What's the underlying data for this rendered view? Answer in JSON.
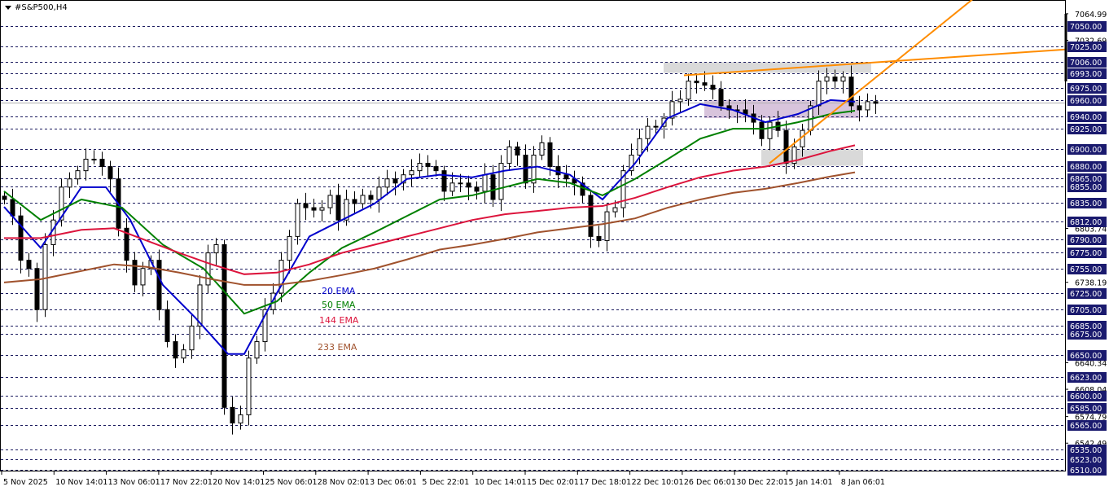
{
  "header": {
    "symbol_label": "#S&P500,H4",
    "menu_icon": "triangle-down-icon"
  },
  "colors": {
    "background": "#ffffff",
    "grid_dash": "#1a1a5e",
    "label_box": "#1a1a6e",
    "ema20": "#0000cc",
    "ema50": "#008000",
    "ema144": "#dc143c",
    "ema233": "#a0522d",
    "trendline": "#ff8c00",
    "zone_gray": "#d9d9d9",
    "zone_purple": "#d8c4dc"
  },
  "chart_data": {
    "type": "candlestick",
    "title": "#S&P500,H4",
    "x_tick_labels": [
      "5 Nov 2025",
      "10 Nov 14:01",
      "13 Nov 06:01",
      "17 Nov 22:01",
      "20 Nov 14:01",
      "25 Nov 06:01",
      "28 Nov 02:01",
      "3 Dec 06:01",
      "5 Dec 22:01",
      "10 Dec 14:01",
      "15 Dec 02:01",
      "17 Dec 18:01",
      "22 Dec 10:01",
      "26 Dec 06:01",
      "30 Dec 22:01",
      "5 Jan 14:01",
      "8 Jan 06:01"
    ],
    "ylim": [
      6505,
      7080
    ],
    "closes": [
      6839,
      6819,
      6765,
      6755,
      6705,
      6784,
      6814,
      6854,
      6864,
      6874,
      6888,
      6888,
      6879,
      6864,
      6804,
      6765,
      6735,
      6755,
      6765,
      6705,
      6666,
      6646,
      6656,
      6685,
      6735,
      6774,
      6784,
      6586,
      6567,
      6577,
      6646,
      6666,
      6705,
      6725,
      6765,
      6794,
      6834,
      6829,
      6826,
      6829,
      6844,
      6814,
      6839,
      6834,
      6844,
      6839,
      6854,
      6864,
      6859,
      6869,
      6874,
      6883,
      6879,
      6874,
      6849,
      6859,
      6859,
      6854,
      6849,
      6869,
      6839,
      6883,
      6903,
      6893,
      6859,
      6893,
      6908,
      6879,
      6869,
      6864,
      6859,
      6844,
      6794,
      6789,
      6824,
      6829,
      6874,
      6893,
      6913,
      6928,
      6928,
      6938,
      6958,
      6961,
      6983,
      6981,
      6978,
      6973,
      6953,
      6948,
      6948,
      6943,
      6933,
      6913,
      6933,
      6923,
      6883,
      6903,
      6923,
      6953,
      6983,
      6988,
      6983,
      6988,
      6953,
      6948,
      6958,
      6956
    ],
    "series": [
      {
        "name": "20 EMA",
        "points": [
          [
            0,
            6830
          ],
          [
            4.5,
            6780
          ],
          [
            9.5,
            6854
          ],
          [
            12.5,
            6854
          ],
          [
            15.5,
            6814
          ],
          [
            19.5,
            6735
          ],
          [
            23.5,
            6695
          ],
          [
            27.5,
            6651
          ],
          [
            29.5,
            6651
          ],
          [
            33.5,
            6725
          ],
          [
            37.5,
            6794
          ],
          [
            41.5,
            6814
          ],
          [
            45.5,
            6834
          ],
          [
            49.5,
            6864
          ],
          [
            53.5,
            6869
          ],
          [
            57.5,
            6866
          ],
          [
            61.5,
            6874
          ],
          [
            65.5,
            6879
          ],
          [
            69.5,
            6869
          ],
          [
            73.5,
            6839
          ],
          [
            77.5,
            6883
          ],
          [
            81.5,
            6938
          ],
          [
            85.5,
            6955
          ],
          [
            89.5,
            6948
          ],
          [
            93.5,
            6933
          ],
          [
            97.5,
            6943
          ],
          [
            101.5,
            6960
          ],
          [
            104.5,
            6958
          ]
        ]
      },
      {
        "name": "50 EMA",
        "points": [
          [
            0,
            6849
          ],
          [
            4.5,
            6814
          ],
          [
            9.5,
            6839
          ],
          [
            14.5,
            6829
          ],
          [
            19.5,
            6784
          ],
          [
            24.5,
            6755
          ],
          [
            29.5,
            6700
          ],
          [
            33.5,
            6715
          ],
          [
            37.5,
            6750
          ],
          [
            41.5,
            6780
          ],
          [
            45.5,
            6799
          ],
          [
            49.5,
            6819
          ],
          [
            53.5,
            6839
          ],
          [
            57.5,
            6844
          ],
          [
            61.5,
            6854
          ],
          [
            65.5,
            6864
          ],
          [
            69.5,
            6859
          ],
          [
            73.5,
            6844
          ],
          [
            77.5,
            6864
          ],
          [
            81.5,
            6888
          ],
          [
            85.5,
            6913
          ],
          [
            89.5,
            6925
          ],
          [
            93.5,
            6925
          ],
          [
            97.5,
            6933
          ],
          [
            101.5,
            6943
          ],
          [
            104.5,
            6947
          ]
        ]
      },
      {
        "name": "144 EMA",
        "points": [
          [
            0,
            6792
          ],
          [
            4.5,
            6792
          ],
          [
            9.5,
            6802
          ],
          [
            13.5,
            6804
          ],
          [
            17.5,
            6789
          ],
          [
            21.5,
            6774
          ],
          [
            25.5,
            6760
          ],
          [
            29.5,
            6748
          ],
          [
            33.5,
            6750
          ],
          [
            37.5,
            6760
          ],
          [
            41.5,
            6774
          ],
          [
            45.5,
            6784
          ],
          [
            49.5,
            6794
          ],
          [
            53.5,
            6804
          ],
          [
            57.5,
            6814
          ],
          [
            61.5,
            6821
          ],
          [
            65.5,
            6825
          ],
          [
            69.5,
            6829
          ],
          [
            73.5,
            6831
          ],
          [
            77.5,
            6841
          ],
          [
            81.5,
            6854
          ],
          [
            85.5,
            6866
          ],
          [
            89.5,
            6874
          ],
          [
            93.5,
            6879
          ],
          [
            97.5,
            6887
          ],
          [
            101.5,
            6898
          ],
          [
            104.5,
            6905
          ]
        ]
      },
      {
        "name": "233 EMA",
        "points": [
          [
            0,
            6738
          ],
          [
            4.5,
            6742
          ],
          [
            9.5,
            6752
          ],
          [
            13.5,
            6760
          ],
          [
            17.5,
            6757
          ],
          [
            21.5,
            6750
          ],
          [
            25.5,
            6742
          ],
          [
            29.5,
            6735
          ],
          [
            33.5,
            6735
          ],
          [
            37.5,
            6740
          ],
          [
            41.5,
            6747
          ],
          [
            45.5,
            6755
          ],
          [
            49.5,
            6766
          ],
          [
            53.5,
            6778
          ],
          [
            57.5,
            6784
          ],
          [
            61.5,
            6791
          ],
          [
            65.5,
            6799
          ],
          [
            69.5,
            6804
          ],
          [
            73.5,
            6809
          ],
          [
            77.5,
            6816
          ],
          [
            81.5,
            6829
          ],
          [
            85.5,
            6839
          ],
          [
            89.5,
            6847
          ],
          [
            93.5,
            6852
          ],
          [
            97.5,
            6859
          ],
          [
            101.5,
            6867
          ],
          [
            104.5,
            6872
          ]
        ]
      }
    ],
    "level_labels": [
      "7050.00",
      "7025.00",
      "7006.00",
      "6993.00",
      "6975.00",
      "6960.00",
      "6940.00",
      "6925.00",
      "6900.00",
      "6880.00",
      "6865.00",
      "6855.00",
      "6835.00",
      "6812.00",
      "6790.00",
      "6775.00",
      "6755.00",
      "6725.00",
      "6705.00",
      "6685.00",
      "6675.00",
      "6650.00",
      "6623.00",
      "6600.00",
      "6585.00",
      "6565.00",
      "6535.00",
      "6523.00",
      "6510.00"
    ],
    "scale_labels": [
      "7064.99",
      "7032.69",
      "6803.74",
      "6738.19",
      "6640.34",
      "6608.04",
      "6574.79",
      "6542.49"
    ],
    "current_price": 6957,
    "zones": [
      {
        "color": "gray",
        "from_index": 81,
        "to_index": 106.5,
        "low": 6993,
        "high": 7006
      },
      {
        "color": "purple",
        "from_index": 86,
        "to_index": 105,
        "low": 6938,
        "high": 6960
      },
      {
        "color": "gray",
        "from_index": 93,
        "to_index": 105.5,
        "low": 6880,
        "high": 6900
      }
    ],
    "trendlines": [
      {
        "from": [
          83.5,
          6990
        ],
        "to": [
          135.5,
          7025
        ]
      },
      {
        "from": [
          94,
          6883
        ],
        "to": [
          120.5,
          7095
        ]
      }
    ]
  }
}
